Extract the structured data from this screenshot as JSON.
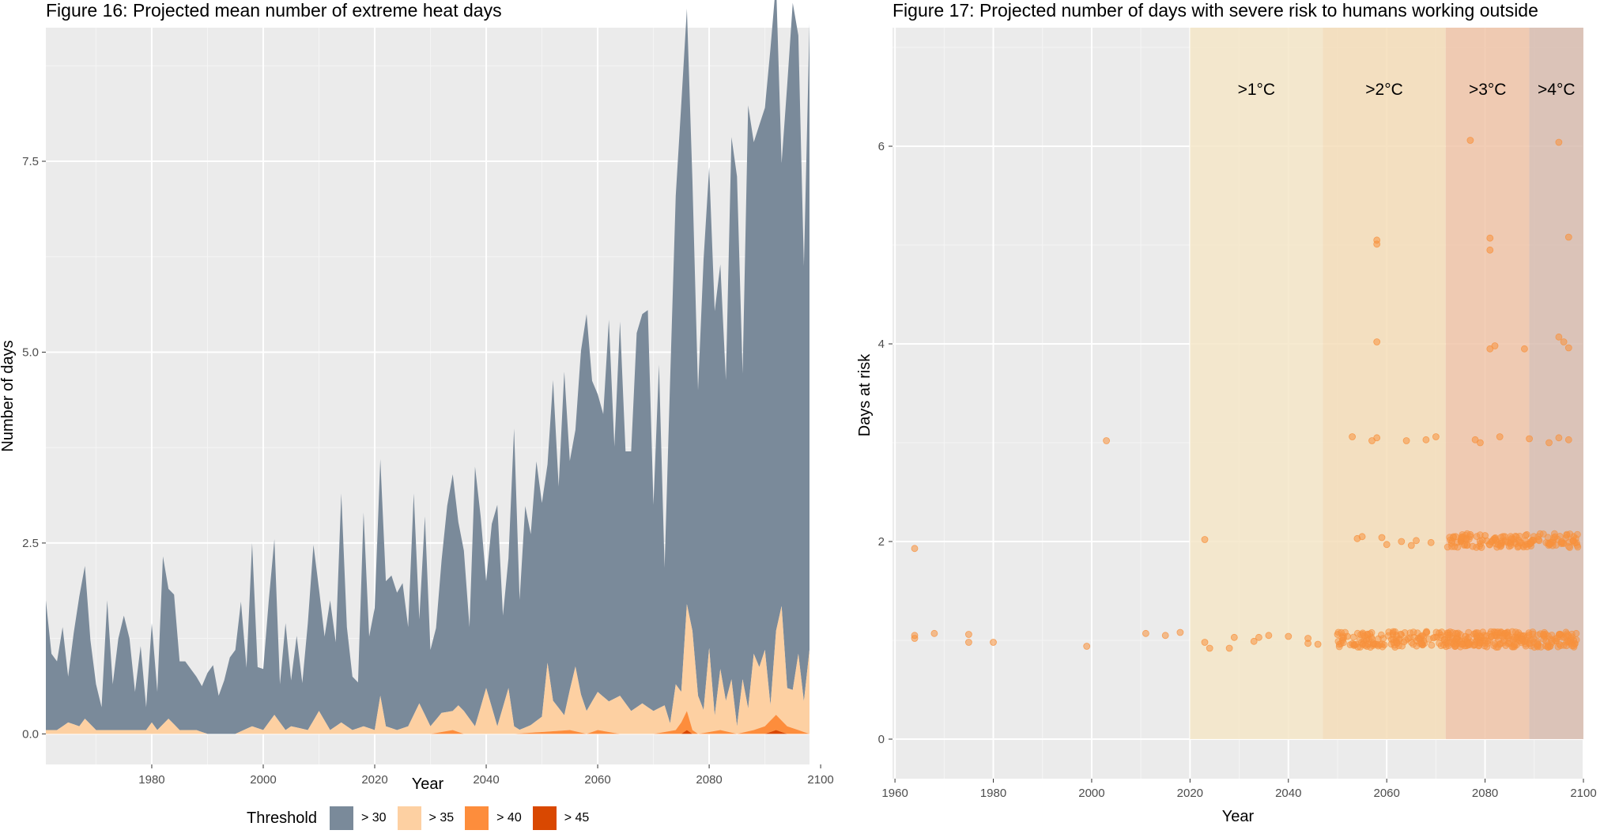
{
  "chart_data": [
    {
      "type": "area",
      "title": "Figure 16: Projected mean number of extreme heat days",
      "xlabel": "Year",
      "ylabel": "Number of days",
      "xlim": [
        1961,
        2098
      ],
      "ylim": [
        -0.4,
        9.25
      ],
      "xticks": [
        1980,
        2000,
        2020,
        2040,
        2060,
        2080,
        2100
      ],
      "yticks": [
        0.0,
        2.5,
        5.0,
        7.5
      ],
      "ytick_labels": [
        "0.0",
        "2.5",
        "5.0",
        "7.5"
      ],
      "grid": true,
      "stacked": true,
      "legend_title": "Threshold",
      "legend_position": "bottom",
      "series": [
        {
          "name": "> 30",
          "color": "#7a8a9a",
          "x": [
            1961,
            1962,
            1963,
            1964,
            1965,
            1966,
            1967,
            1968,
            1969,
            1970,
            1971,
            1972,
            1973,
            1974,
            1975,
            1976,
            1977,
            1978,
            1979,
            1980,
            1981,
            1982,
            1983,
            1984,
            1985,
            1986,
            1987,
            1988,
            1989,
            1990,
            1991,
            1992,
            1993,
            1994,
            1995,
            1996,
            1997,
            1998,
            1999,
            2000,
            2001,
            2002,
            2003,
            2004,
            2005,
            2006,
            2007,
            2008,
            2009,
            2010,
            2011,
            2012,
            2013,
            2014,
            2015,
            2016,
            2017,
            2018,
            2019,
            2020,
            2021,
            2022,
            2023,
            2024,
            2025,
            2026,
            2027,
            2028,
            2029,
            2030,
            2031,
            2032,
            2033,
            2034,
            2035,
            2036,
            2037,
            2038,
            2039,
            2040,
            2041,
            2042,
            2043,
            2044,
            2045,
            2046,
            2047,
            2048,
            2049,
            2050,
            2051,
            2052,
            2053,
            2054,
            2055,
            2056,
            2057,
            2058,
            2059,
            2060,
            2061,
            2062,
            2063,
            2064,
            2065,
            2066,
            2067,
            2068,
            2069,
            2070,
            2071,
            2072,
            2073,
            2074,
            2075,
            2076,
            2077,
            2078,
            2079,
            2080,
            2081,
            2082,
            2083,
            2084,
            2085,
            2086,
            2087,
            2088,
            2089,
            2090,
            2091,
            2092,
            2093,
            2094,
            2095,
            2096,
            2097,
            2098
          ],
          "values": [
            1.7,
            1.0,
            0.9,
            1.3,
            0.6,
            1.2,
            1.7,
            2.0,
            1.1,
            0.6,
            0.3,
            1.7,
            0.6,
            1.2,
            1.5,
            1.2,
            0.5,
            1.1,
            0.3,
            1.3,
            0.5,
            2.2,
            1.7,
            1.7,
            0.9,
            0.9,
            0.8,
            0.7,
            0.6,
            0.8,
            0.9,
            0.5,
            0.7,
            1.0,
            1.1,
            1.7,
            0.8,
            2.4,
            0.8,
            0.8,
            1.6,
            2.3,
            0.5,
            1.4,
            0.6,
            1.2,
            0.6,
            1.4,
            2.3,
            1.6,
            1.1,
            1.7,
            1.1,
            3.0,
            1.3,
            0.7,
            0.6,
            2.8,
            1.2,
            1.6,
            3.1,
            1.9,
            2.0,
            1.8,
            1.9,
            1.3,
            2.9,
            1.1,
            2.6,
            1.0,
            1.2,
            2.0,
            2.7,
            3.1,
            2.4,
            2.1,
            1.2,
            3.4,
            2.5,
            1.4,
            2.4,
            2.9,
            1.2,
            1.7,
            3.9,
            1.7,
            2.9,
            2.5,
            3.4,
            2.8,
            2.6,
            4.2,
            2.9,
            4.5,
            3.0,
            3.1,
            4.5,
            5.2,
            4.2,
            3.9,
            3.7,
            5.0,
            3.3,
            4.9,
            3.3,
            3.4,
            4.9,
            5.1,
            5.2,
            2.7,
            4.5,
            1.8,
            4.5,
            6.4,
            7.7,
            7.8,
            5.9,
            4.0,
            5.9,
            6.3,
            5.3,
            5.3,
            4.2,
            7.1,
            7.2,
            4.0,
            7.9,
            6.7,
            7.1,
            7.1,
            8.6,
            8.5,
            5.8,
            7.9,
            9.0,
            8.1,
            5.7,
            8.2
          ]
        },
        {
          "name": "> 35",
          "color": "#fdd0a2",
          "x": [
            1961,
            1963,
            1965,
            1967,
            1968,
            1970,
            1973,
            1975,
            1977,
            1979,
            1980,
            1981,
            1983,
            1985,
            1988,
            1990,
            1995,
            1998,
            2000,
            2002,
            2004,
            2005,
            2008,
            2010,
            2012,
            2014,
            2016,
            2018,
            2020,
            2021,
            2022,
            2024,
            2026,
            2028,
            2030,
            2032,
            2034,
            2035,
            2036,
            2038,
            2040,
            2042,
            2044,
            2045,
            2046,
            2048,
            2050,
            2051,
            2052,
            2054,
            2056,
            2057,
            2058,
            2060,
            2062,
            2064,
            2066,
            2068,
            2070,
            2072,
            2073,
            2074,
            2075,
            2076,
            2077,
            2078,
            2079,
            2080,
            2081,
            2082,
            2083,
            2084,
            2085,
            2086,
            2087,
            2088,
            2089,
            2090,
            2091,
            2092,
            2093,
            2094,
            2095,
            2096,
            2097,
            2098
          ],
          "values": [
            0.05,
            0.05,
            0.15,
            0.1,
            0.2,
            0.05,
            0.05,
            0.05,
            0.05,
            0.05,
            0.15,
            0.05,
            0.2,
            0.05,
            0.05,
            0.0,
            0.0,
            0.1,
            0.05,
            0.25,
            0.05,
            0.1,
            0.05,
            0.3,
            0.05,
            0.15,
            0.05,
            0.1,
            0.05,
            0.5,
            0.1,
            0.05,
            0.1,
            0.4,
            0.1,
            0.25,
            0.25,
            0.35,
            0.3,
            0.1,
            0.6,
            0.1,
            0.6,
            0.1,
            0.05,
            0.1,
            0.2,
            0.9,
            0.4,
            0.2,
            0.85,
            0.5,
            0.3,
            0.5,
            0.4,
            0.5,
            0.3,
            0.4,
            0.3,
            0.35,
            0.1,
            0.6,
            0.4,
            1.4,
            1.3,
            0.5,
            0.3,
            1.1,
            0.2,
            0.8,
            0.4,
            0.7,
            0.1,
            0.7,
            0.3,
            1.0,
            0.8,
            1.0,
            0.2,
            1.1,
            1.5,
            0.5,
            0.5,
            1.0,
            0.4,
            1.1
          ]
        },
        {
          "name": "> 40",
          "color": "#fd8d3c",
          "x": [
            1961,
            2020,
            2030,
            2034,
            2036,
            2045,
            2055,
            2058,
            2060,
            2064,
            2070,
            2074,
            2075,
            2076,
            2077,
            2078,
            2082,
            2085,
            2088,
            2090,
            2091,
            2092,
            2093,
            2094,
            2096,
            2098
          ],
          "values": [
            0.0,
            0.0,
            0.0,
            0.05,
            0.0,
            0.0,
            0.05,
            0.0,
            0.05,
            0.0,
            0.0,
            0.05,
            0.15,
            0.25,
            0.05,
            0.0,
            0.05,
            0.0,
            0.05,
            0.1,
            0.15,
            0.2,
            0.15,
            0.1,
            0.05,
            0.0
          ]
        },
        {
          "name": "> 45",
          "color": "#d94801",
          "x": [
            1961,
            2075,
            2076,
            2077,
            2090,
            2092,
            2094,
            2098
          ],
          "values": [
            0.0,
            0.0,
            0.05,
            0.0,
            0.0,
            0.05,
            0.0,
            0.0
          ]
        }
      ]
    },
    {
      "type": "scatter",
      "title": "Figure 17: Projected number of days with severe risk to humans working outside",
      "xlabel": "Year",
      "ylabel": "Days at risk",
      "xlim": [
        1959.5,
        2100
      ],
      "ylim": [
        -0.4,
        7.2
      ],
      "xticks": [
        1960,
        1980,
        2000,
        2020,
        2040,
        2060,
        2080,
        2100
      ],
      "yticks": [
        0,
        2,
        4,
        6
      ],
      "grid": true,
      "point_color": "#f7913d",
      "bands": [
        {
          "label": ">1°C",
          "from": 2020,
          "to": 2047,
          "color": "#f5e6c8"
        },
        {
          "label": ">2°C",
          "from": 2047,
          "to": 2072,
          "color": "#f5ddb8"
        },
        {
          "label": ">3°C",
          "from": 2072,
          "to": 2089,
          "color": "#f0c4a8"
        },
        {
          "label": ">4°C",
          "from": 2089,
          "to": 2100,
          "color": "#d8bcaf"
        }
      ],
      "points": [
        [
          1964,
          1.93
        ],
        [
          1964,
          1.05
        ],
        [
          1964,
          1.02
        ],
        [
          1968,
          1.07
        ],
        [
          1975,
          1.06
        ],
        [
          1975,
          0.98
        ],
        [
          1980,
          0.98
        ],
        [
          1999,
          0.94
        ],
        [
          2003,
          3.02
        ],
        [
          2011,
          1.07
        ],
        [
          2015,
          1.05
        ],
        [
          2018,
          1.08
        ],
        [
          2023,
          2.02
        ],
        [
          2023,
          0.98
        ],
        [
          2024,
          0.92
        ],
        [
          2028,
          0.92
        ],
        [
          2029,
          1.03
        ],
        [
          2033,
          0.99
        ],
        [
          2034,
          1.03
        ],
        [
          2036,
          1.05
        ],
        [
          2040,
          1.04
        ],
        [
          2044,
          1.02
        ],
        [
          2044,
          0.97
        ],
        [
          2046,
          0.96
        ],
        [
          2050,
          1.06
        ],
        [
          2051,
          1.0
        ],
        [
          2052,
          1.04
        ],
        [
          2053,
          3.06
        ],
        [
          2054,
          2.03
        ],
        [
          2055,
          2.05
        ],
        [
          2056,
          1.02
        ],
        [
          2057,
          3.02
        ],
        [
          2058,
          3.05
        ],
        [
          2058,
          5.05
        ],
        [
          2058,
          5.01
        ],
        [
          2058,
          4.02
        ],
        [
          2059,
          2.04
        ],
        [
          2060,
          1.97
        ],
        [
          2061,
          1.01
        ],
        [
          2062,
          1.05
        ],
        [
          2063,
          2.0
        ],
        [
          2064,
          3.02
        ],
        [
          2065,
          1.96
        ],
        [
          2066,
          2.01
        ],
        [
          2067,
          1.04
        ],
        [
          2068,
          3.03
        ],
        [
          2069,
          1.99
        ],
        [
          2070,
          3.06
        ],
        [
          2071,
          1.03
        ],
        [
          2074,
          2.05
        ],
        [
          2076,
          1.04
        ],
        [
          2077,
          2.07
        ],
        [
          2077,
          6.06
        ],
        [
          2078,
          3.03
        ],
        [
          2079,
          3.0
        ],
        [
          2080,
          2.06
        ],
        [
          2080,
          1.0
        ],
        [
          2081,
          5.07
        ],
        [
          2081,
          4.95
        ],
        [
          2081,
          3.95
        ],
        [
          2082,
          3.98
        ],
        [
          2082,
          2.03
        ],
        [
          2083,
          3.06
        ],
        [
          2084,
          2.05
        ],
        [
          2086,
          1.02
        ],
        [
          2088,
          3.95
        ],
        [
          2089,
          3.04
        ],
        [
          2091,
          2.01
        ],
        [
          2092,
          1.05
        ],
        [
          2093,
          3.0
        ],
        [
          2094,
          2.04
        ],
        [
          2095,
          6.04
        ],
        [
          2095,
          4.07
        ],
        [
          2095,
          3.05
        ],
        [
          2096,
          1.98
        ],
        [
          2096,
          4.02
        ],
        [
          2097,
          5.08
        ],
        [
          2097,
          3.03
        ],
        [
          2097,
          3.96
        ],
        [
          2098,
          2.05
        ],
        [
          2098,
          1.0
        ]
      ]
    }
  ],
  "legend": {
    "title": "Threshold",
    "items": [
      {
        "label": "> 30",
        "color": "#7a8a9a"
      },
      {
        "label": "> 35",
        "color": "#fdd0a2"
      },
      {
        "label": "> 40",
        "color": "#fd8d3c"
      },
      {
        "label": "> 45",
        "color": "#d94801"
      }
    ]
  }
}
